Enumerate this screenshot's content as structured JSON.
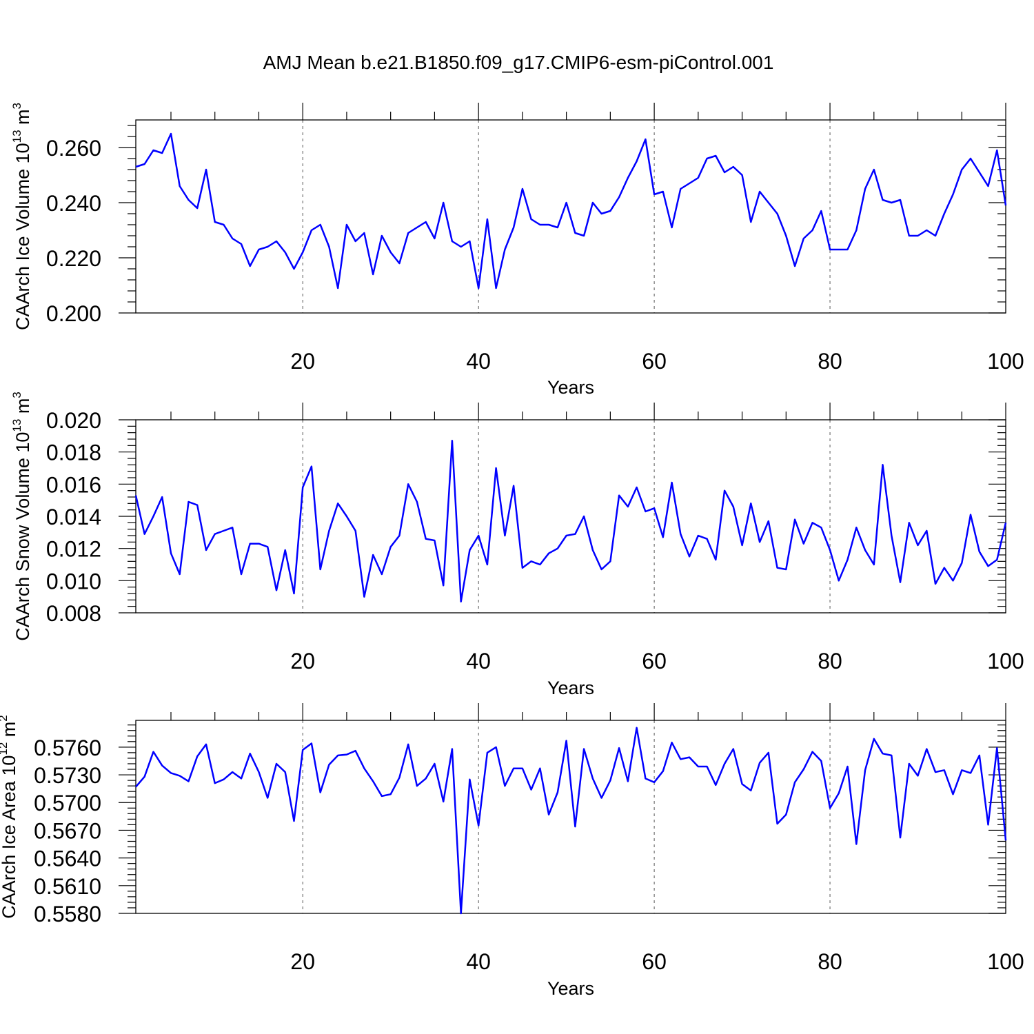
{
  "title": "AMJ Mean b.e21.B1850.f09_g17.CMIP6-esm-piControl.001",
  "colors": {
    "line": "#0000ff",
    "axes": "#000000",
    "grid": "#555555"
  },
  "chart_data": [
    {
      "type": "line",
      "ylabel": {
        "main": "CAArch Ice Volume 10",
        "exp": "13",
        "unit": " m",
        "unit_exp": "3"
      },
      "xlabel": "Years",
      "xlim": [
        1,
        100
      ],
      "xticks": [
        20,
        40,
        60,
        80,
        100
      ],
      "ylim": [
        0.2,
        0.27
      ],
      "yticks": [
        0.2,
        0.22,
        0.24,
        0.26
      ],
      "ytick_labels": [
        "0.200",
        "0.220",
        "0.240",
        "0.260"
      ],
      "grid_x": true,
      "x": [
        1,
        2,
        3,
        4,
        5,
        6,
        7,
        8,
        9,
        10,
        11,
        12,
        13,
        14,
        15,
        16,
        17,
        18,
        19,
        20,
        21,
        22,
        23,
        24,
        25,
        26,
        27,
        28,
        29,
        30,
        31,
        32,
        33,
        34,
        35,
        36,
        37,
        38,
        39,
        40,
        41,
        42,
        43,
        44,
        45,
        46,
        47,
        48,
        49,
        50,
        51,
        52,
        53,
        54,
        55,
        56,
        57,
        58,
        59,
        60,
        61,
        62,
        63,
        64,
        65,
        66,
        67,
        68,
        69,
        70,
        71,
        72,
        73,
        74,
        75,
        76,
        77,
        78,
        79,
        80,
        81,
        82,
        83,
        84,
        85,
        86,
        87,
        88,
        89,
        90,
        91,
        92,
        93,
        94,
        95,
        96,
        97,
        98,
        99,
        100
      ],
      "values": [
        0.253,
        0.254,
        0.259,
        0.258,
        0.265,
        0.246,
        0.241,
        0.238,
        0.252,
        0.233,
        0.232,
        0.227,
        0.225,
        0.217,
        0.223,
        0.224,
        0.226,
        0.222,
        0.216,
        0.222,
        0.23,
        0.232,
        0.224,
        0.209,
        0.232,
        0.226,
        0.229,
        0.214,
        0.228,
        0.222,
        0.218,
        0.229,
        0.231,
        0.233,
        0.227,
        0.24,
        0.226,
        0.224,
        0.226,
        0.209,
        0.234,
        0.209,
        0.223,
        0.231,
        0.245,
        0.234,
        0.232,
        0.232,
        0.231,
        0.24,
        0.229,
        0.228,
        0.24,
        0.236,
        0.237,
        0.242,
        0.249,
        0.255,
        0.263,
        0.243,
        0.244,
        0.231,
        0.245,
        0.247,
        0.249,
        0.256,
        0.257,
        0.251,
        0.253,
        0.25,
        0.233,
        0.244,
        0.24,
        0.236,
        0.228,
        0.217,
        0.227,
        0.23,
        0.237,
        0.223,
        0.223,
        0.223,
        0.23,
        0.245,
        0.252,
        0.241,
        0.24,
        0.241,
        0.228,
        0.228,
        0.23,
        0.228,
        0.236,
        0.243,
        0.252,
        0.256,
        0.251,
        0.246,
        0.259,
        0.239
      ]
    },
    {
      "type": "line",
      "ylabel": {
        "main": "CAArch Snow Volume 10",
        "exp": "13",
        "unit": " m",
        "unit_exp": "3"
      },
      "xlabel": "Years",
      "xlim": [
        1,
        100
      ],
      "xticks": [
        20,
        40,
        60,
        80,
        100
      ],
      "ylim": [
        0.008,
        0.02
      ],
      "yticks": [
        0.008,
        0.01,
        0.012,
        0.014,
        0.016,
        0.018,
        0.02
      ],
      "ytick_labels": [
        "0.008",
        "0.010",
        "0.012",
        "0.014",
        "0.016",
        "0.018",
        "0.020"
      ],
      "grid_x": true,
      "x": [
        1,
        2,
        3,
        4,
        5,
        6,
        7,
        8,
        9,
        10,
        11,
        12,
        13,
        14,
        15,
        16,
        17,
        18,
        19,
        20,
        21,
        22,
        23,
        24,
        25,
        26,
        27,
        28,
        29,
        30,
        31,
        32,
        33,
        34,
        35,
        36,
        37,
        38,
        39,
        40,
        41,
        42,
        43,
        44,
        45,
        46,
        47,
        48,
        49,
        50,
        51,
        52,
        53,
        54,
        55,
        56,
        57,
        58,
        59,
        60,
        61,
        62,
        63,
        64,
        65,
        66,
        67,
        68,
        69,
        70,
        71,
        72,
        73,
        74,
        75,
        76,
        77,
        78,
        79,
        80,
        81,
        82,
        83,
        84,
        85,
        86,
        87,
        88,
        89,
        90,
        91,
        92,
        93,
        94,
        95,
        96,
        97,
        98,
        99,
        100
      ],
      "values": [
        0.0153,
        0.0129,
        0.014,
        0.0152,
        0.0117,
        0.0104,
        0.0149,
        0.0147,
        0.0119,
        0.0129,
        0.0131,
        0.0133,
        0.0104,
        0.0123,
        0.0123,
        0.0121,
        0.0094,
        0.0119,
        0.0092,
        0.0158,
        0.0171,
        0.0107,
        0.0131,
        0.0148,
        0.014,
        0.0131,
        0.009,
        0.0116,
        0.0104,
        0.0121,
        0.0128,
        0.016,
        0.0149,
        0.0126,
        0.0125,
        0.0097,
        0.0187,
        0.0087,
        0.0119,
        0.0128,
        0.011,
        0.017,
        0.0128,
        0.0159,
        0.0108,
        0.0112,
        0.011,
        0.0117,
        0.012,
        0.0128,
        0.0129,
        0.014,
        0.0119,
        0.0107,
        0.0112,
        0.0153,
        0.0146,
        0.0158,
        0.0143,
        0.0145,
        0.0127,
        0.0161,
        0.0129,
        0.0115,
        0.0128,
        0.0126,
        0.0113,
        0.0156,
        0.0146,
        0.0122,
        0.0148,
        0.0124,
        0.0137,
        0.0108,
        0.0107,
        0.0138,
        0.0123,
        0.0136,
        0.0133,
        0.0119,
        0.01,
        0.0113,
        0.0133,
        0.0119,
        0.011,
        0.0172,
        0.0128,
        0.0099,
        0.0136,
        0.0122,
        0.0131,
        0.0098,
        0.0108,
        0.01,
        0.0111,
        0.0141,
        0.0118,
        0.0109,
        0.0113,
        0.0136
      ]
    },
    {
      "type": "line",
      "ylabel": {
        "main": "CAArch Ice Area 10",
        "exp": "12",
        "unit": " m",
        "unit_exp": "2"
      },
      "xlabel": "Years",
      "xlim": [
        1,
        100
      ],
      "xticks": [
        20,
        40,
        60,
        80,
        100
      ],
      "ylim": [
        0.558,
        0.5789
      ],
      "yticks": [
        0.558,
        0.561,
        0.564,
        0.567,
        0.57,
        0.573,
        0.576
      ],
      "ytick_labels": [
        "0.5580",
        "0.5610",
        "0.5640",
        "0.5670",
        "0.5700",
        "0.5730",
        "0.5760"
      ],
      "grid_x": true,
      "x": [
        1,
        2,
        3,
        4,
        5,
        6,
        7,
        8,
        9,
        10,
        11,
        12,
        13,
        14,
        15,
        16,
        17,
        18,
        19,
        20,
        21,
        22,
        23,
        24,
        25,
        26,
        27,
        28,
        29,
        30,
        31,
        32,
        33,
        34,
        35,
        36,
        37,
        38,
        39,
        40,
        41,
        42,
        43,
        44,
        45,
        46,
        47,
        48,
        49,
        50,
        51,
        52,
        53,
        54,
        55,
        56,
        57,
        58,
        59,
        60,
        61,
        62,
        63,
        64,
        65,
        66,
        67,
        68,
        69,
        70,
        71,
        72,
        73,
        74,
        75,
        76,
        77,
        78,
        79,
        80,
        81,
        82,
        83,
        84,
        85,
        86,
        87,
        88,
        89,
        90,
        91,
        92,
        93,
        94,
        95,
        96,
        97,
        98,
        99,
        100
      ],
      "values": [
        0.5717,
        0.5728,
        0.5755,
        0.574,
        0.5732,
        0.5729,
        0.5723,
        0.575,
        0.5763,
        0.5721,
        0.5725,
        0.5733,
        0.5726,
        0.5753,
        0.5733,
        0.5705,
        0.5742,
        0.5733,
        0.568,
        0.5757,
        0.5764,
        0.5711,
        0.5741,
        0.5751,
        0.5752,
        0.5756,
        0.5737,
        0.5723,
        0.5707,
        0.5709,
        0.5727,
        0.5763,
        0.5718,
        0.5726,
        0.5742,
        0.5701,
        0.5758,
        0.558,
        0.5725,
        0.5675,
        0.5754,
        0.576,
        0.5718,
        0.5737,
        0.5737,
        0.5714,
        0.5737,
        0.5687,
        0.5711,
        0.5767,
        0.5674,
        0.5758,
        0.5726,
        0.5705,
        0.5724,
        0.5759,
        0.5723,
        0.5781,
        0.5726,
        0.5722,
        0.5734,
        0.5765,
        0.5747,
        0.5749,
        0.5739,
        0.5739,
        0.5719,
        0.5742,
        0.5758,
        0.572,
        0.5713,
        0.5743,
        0.5754,
        0.5677,
        0.5687,
        0.5722,
        0.5736,
        0.5755,
        0.5745,
        0.5694,
        0.571,
        0.5739,
        0.5655,
        0.5735,
        0.5769,
        0.5753,
        0.5751,
        0.5662,
        0.5742,
        0.5729,
        0.5758,
        0.5733,
        0.5735,
        0.5709,
        0.5735,
        0.5732,
        0.5751,
        0.5676,
        0.5759,
        0.5659
      ]
    }
  ]
}
